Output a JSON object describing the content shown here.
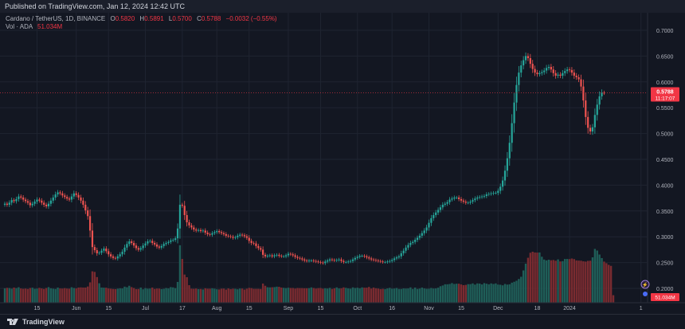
{
  "published_text": "Published on TradingView.com, Jan 12, 2024 12:42 UTC",
  "legend": {
    "symbol": "Cardano / TetherUS, 1D, BINANCE",
    "o_label": "O",
    "o_value": "0.5820",
    "h_label": "H",
    "h_value": "0.5891",
    "l_label": "L",
    "l_value": "0.5700",
    "c_label": "C",
    "c_value": "0.5788",
    "change": "−0.0032 (−0.55%)",
    "vol_label": "Vol · ADA",
    "vol_value": "51.034M"
  },
  "price_badge": {
    "price": "0.5788",
    "countdown": "11:17:07"
  },
  "volume_badge": "51.034M",
  "event_marker": "⚡",
  "brand": "TradingView",
  "colors": {
    "up": "#26a69a",
    "down": "#ef5350",
    "background": "#131722",
    "text": "#b2b5be",
    "price_line": "#f23645"
  },
  "chart_data": {
    "type": "candlestick",
    "yaxis_ticks": [
      "0.7000",
      "0.6500",
      "0.6000",
      "0.5500",
      "0.5000",
      "0.4500",
      "0.4000",
      "0.3500",
      "0.3000",
      "0.2500",
      "0.2000"
    ],
    "ylim": [
      0.17,
      0.72
    ],
    "xaxis_ticks": [
      {
        "label": "15",
        "day": 14
      },
      {
        "label": "Jun",
        "day": 31
      },
      {
        "label": "15",
        "day": 45
      },
      {
        "label": "Jul",
        "day": 61
      },
      {
        "label": "17",
        "day": 77
      },
      {
        "label": "Aug",
        "day": 92
      },
      {
        "label": "15",
        "day": 106
      },
      {
        "label": "Sep",
        "day": 123
      },
      {
        "label": "15",
        "day": 137
      },
      {
        "label": "Oct",
        "day": 153
      },
      {
        "label": "16",
        "day": 168
      },
      {
        "label": "Nov",
        "day": 184
      },
      {
        "label": "15",
        "day": 198
      },
      {
        "label": "Dec",
        "day": 214
      },
      {
        "label": "18",
        "day": 231
      },
      {
        "label": "2024",
        "day": 245
      },
      {
        "label": "1",
        "day": 276
      }
    ],
    "grid": true,
    "volume_unit": "M ADA",
    "close": [
      0.364,
      0.362,
      0.366,
      0.371,
      0.369,
      0.373,
      0.378,
      0.376,
      0.372,
      0.369,
      0.366,
      0.361,
      0.364,
      0.368,
      0.372,
      0.37,
      0.366,
      0.362,
      0.359,
      0.364,
      0.37,
      0.376,
      0.382,
      0.386,
      0.384,
      0.38,
      0.377,
      0.374,
      0.372,
      0.378,
      0.384,
      0.381,
      0.376,
      0.37,
      0.362,
      0.351,
      0.34,
      0.312,
      0.28,
      0.274,
      0.268,
      0.269,
      0.273,
      0.277,
      0.272,
      0.266,
      0.262,
      0.259,
      0.258,
      0.262,
      0.266,
      0.271,
      0.279,
      0.286,
      0.291,
      0.288,
      0.283,
      0.278,
      0.275,
      0.278,
      0.283,
      0.287,
      0.291,
      0.292,
      0.288,
      0.285,
      0.281,
      0.279,
      0.282,
      0.286,
      0.288,
      0.29,
      0.293,
      0.294,
      0.297,
      0.316,
      0.362,
      0.36,
      0.342,
      0.328,
      0.322,
      0.318,
      0.314,
      0.312,
      0.313,
      0.311,
      0.312,
      0.308,
      0.305,
      0.304,
      0.307,
      0.309,
      0.311,
      0.309,
      0.307,
      0.305,
      0.302,
      0.301,
      0.3,
      0.298,
      0.299,
      0.302,
      0.304,
      0.303,
      0.301,
      0.298,
      0.292,
      0.288,
      0.287,
      0.282,
      0.278,
      0.275,
      0.265,
      0.262,
      0.263,
      0.264,
      0.262,
      0.264,
      0.265,
      0.263,
      0.262,
      0.262,
      0.264,
      0.267,
      0.266,
      0.264,
      0.261,
      0.259,
      0.258,
      0.256,
      0.254,
      0.253,
      0.254,
      0.254,
      0.253,
      0.252,
      0.251,
      0.25,
      0.249,
      0.252,
      0.254,
      0.256,
      0.255,
      0.254,
      0.255,
      0.256,
      0.253,
      0.251,
      0.251,
      0.252,
      0.253,
      0.256,
      0.259,
      0.261,
      0.263,
      0.263,
      0.262,
      0.26,
      0.258,
      0.256,
      0.255,
      0.254,
      0.253,
      0.252,
      0.251,
      0.251,
      0.252,
      0.253,
      0.255,
      0.258,
      0.26,
      0.262,
      0.268,
      0.273,
      0.279,
      0.284,
      0.288,
      0.29,
      0.294,
      0.298,
      0.302,
      0.307,
      0.312,
      0.318,
      0.327,
      0.336,
      0.342,
      0.347,
      0.352,
      0.357,
      0.362,
      0.364,
      0.367,
      0.372,
      0.374,
      0.376,
      0.376,
      0.373,
      0.37,
      0.368,
      0.366,
      0.366,
      0.368,
      0.371,
      0.374,
      0.376,
      0.377,
      0.378,
      0.379,
      0.382,
      0.383,
      0.384,
      0.385,
      0.385,
      0.389,
      0.397,
      0.409,
      0.428,
      0.452,
      0.482,
      0.52,
      0.56,
      0.594,
      0.618,
      0.632,
      0.642,
      0.65,
      0.646,
      0.635,
      0.625,
      0.618,
      0.615,
      0.617,
      0.619,
      0.622,
      0.627,
      0.629,
      0.624,
      0.617,
      0.612,
      0.614,
      0.612,
      0.617,
      0.621,
      0.624,
      0.623,
      0.618,
      0.612,
      0.609,
      0.605,
      0.591,
      0.564,
      0.532,
      0.511,
      0.504,
      0.512,
      0.536,
      0.556,
      0.572,
      0.579,
      0.5788
    ],
    "volume_millions": [
      98,
      101,
      100,
      95,
      103,
      99,
      105,
      97,
      94,
      96,
      93,
      100,
      102,
      94,
      96,
      101,
      97,
      93,
      100,
      106,
      98,
      95,
      93,
      103,
      97,
      96,
      99,
      96,
      95,
      105,
      100,
      97,
      103,
      104,
      103,
      103,
      110,
      138,
      213,
      209,
      174,
      132,
      103,
      102,
      102,
      97,
      95,
      93,
      92,
      95,
      98,
      97,
      109,
      105,
      115,
      106,
      100,
      92,
      93,
      103,
      91,
      99,
      95,
      96,
      103,
      93,
      96,
      96,
      92,
      94,
      100,
      97,
      106,
      104,
      99,
      141,
      390,
      297,
      191,
      173,
      119,
      95,
      94,
      96,
      92,
      93,
      90,
      98,
      95,
      95,
      98,
      95,
      91,
      90,
      95,
      96,
      89,
      97,
      92,
      95,
      94,
      91,
      96,
      96,
      89,
      95,
      101,
      99,
      94,
      94,
      94,
      93,
      130,
      115,
      105,
      104,
      105,
      106,
      109,
      108,
      103,
      101,
      99,
      102,
      100,
      100,
      96,
      100,
      99,
      99,
      98,
      98,
      99,
      104,
      100,
      96,
      99,
      100,
      95,
      98,
      96,
      101,
      93,
      98,
      104,
      97,
      98,
      104,
      101,
      97,
      95,
      104,
      100,
      102,
      98,
      104,
      102,
      102,
      107,
      96,
      103,
      98,
      96,
      92,
      94,
      92,
      97,
      101,
      95,
      96,
      100,
      93,
      93,
      97,
      96,
      97,
      104,
      93,
      103,
      93,
      96,
      103,
      97,
      94,
      95,
      100,
      96,
      97,
      102,
      112,
      117,
      125,
      125,
      127,
      133,
      127,
      129,
      129,
      124,
      119,
      121,
      126,
      126,
      131,
      123,
      131,
      130,
      124,
      133,
      129,
      125,
      131,
      127,
      131,
      123,
      122,
      118,
      127,
      123,
      125,
      136,
      142,
      149,
      161,
      176,
      219,
      265,
      305,
      339,
      346,
      341,
      340,
      341,
      312,
      293,
      287,
      292,
      288,
      290,
      285,
      294,
      280,
      282,
      297,
      297,
      296,
      300,
      296,
      287,
      286,
      285,
      281,
      279,
      284,
      285,
      308,
      365,
      354,
      327,
      303,
      279,
      268,
      257,
      250,
      51.034
    ]
  }
}
